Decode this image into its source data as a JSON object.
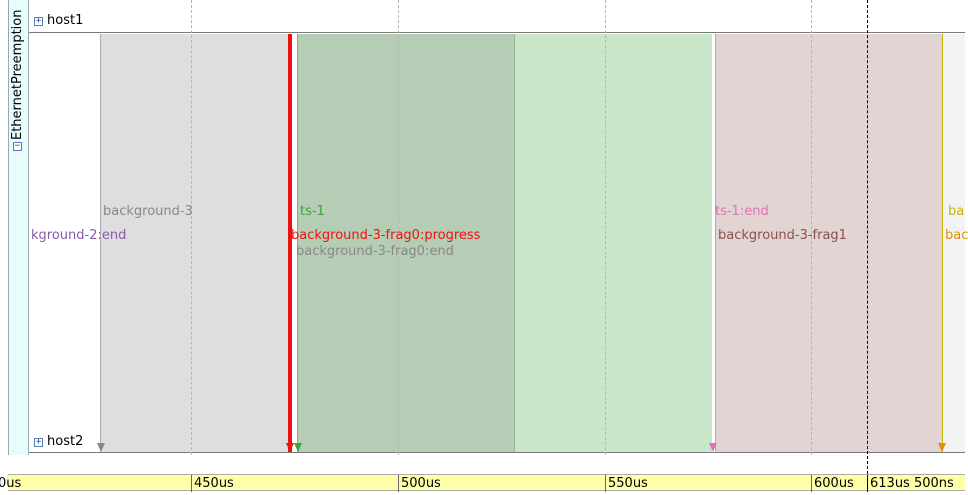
{
  "panel": {
    "title": "EthernetPreemption",
    "collapse_symbol": "−"
  },
  "hosts": {
    "top": {
      "label": "host1",
      "expand_symbol": "+"
    },
    "bottom": {
      "label": "host2",
      "expand_symbol": "+"
    }
  },
  "events": {
    "background_3": "background-3",
    "background_2_end": "kground-2:end",
    "ts_1": "ts-1",
    "frag0_progress": "background-3-frag0:progress",
    "frag0_end": "background-3-frag0:end",
    "ts_1_end": "ts-1:end",
    "frag1": "background-3-frag1",
    "ba_top": "ba",
    "ba_bottom": "bac"
  },
  "colors": {
    "gray_region": "#dedede",
    "green_dark": "#b6cdb5",
    "green_light": "#c9e6c9",
    "pink_region": "#e2d4d2",
    "progress_red": "#ee1111",
    "purple_text": "#8a5ab0",
    "green_text": "#3aa33a",
    "pink_text": "#e070b8",
    "brown_text": "#8a5050",
    "yellow_text": "#c8b400",
    "orange_text": "#e09000"
  },
  "axis": {
    "ticks": [
      "0us",
      "450us",
      "500us",
      "550us",
      "600us"
    ],
    "cursor_label": "613us 500ns"
  }
}
